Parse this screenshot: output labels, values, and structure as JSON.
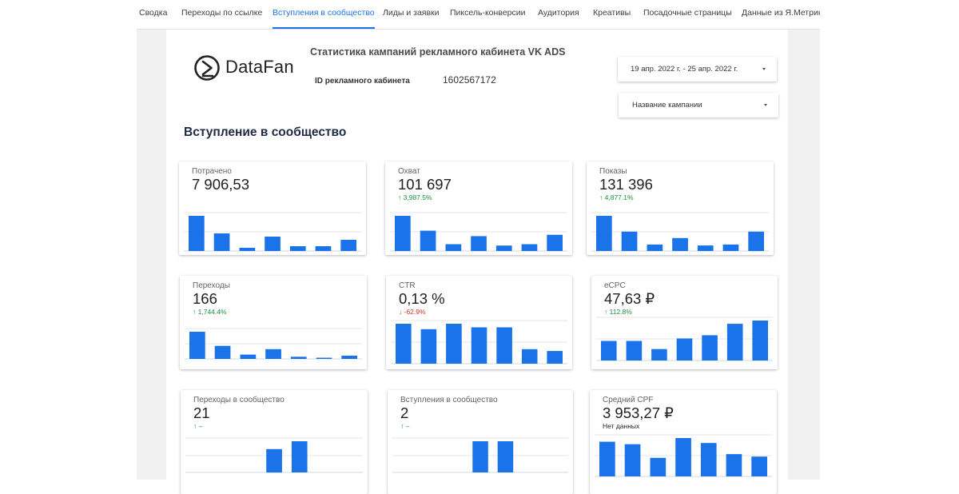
{
  "nav": {
    "tabs": [
      {
        "label": "Сводка",
        "active": false
      },
      {
        "label": "Переходы по ссылке",
        "active": false
      },
      {
        "label": "Вступления в сообщество",
        "active": true
      },
      {
        "label": "Лиды и заявки",
        "active": false
      },
      {
        "label": "Пиксель-конверсии",
        "active": false
      },
      {
        "label": "Аудитория",
        "active": false
      },
      {
        "label": "Креативы",
        "active": false
      },
      {
        "label": "Посадочные страницы",
        "active": false
      },
      {
        "label": "Данные из Я.Метрики",
        "active": false
      }
    ]
  },
  "header": {
    "logo_text": "DataFan",
    "report_title": "Статистика кампаний рекламного кабинета VK ADS",
    "account_label": "ID рекламного кабинета",
    "account_id": "1602567172"
  },
  "controls": {
    "date_range": "19 апр. 2022 г. - 25 апр. 2022 г.",
    "campaign_filter": "Название кампании"
  },
  "section_title": "Вступление в сообщество",
  "colors": {
    "accent": "#1a73e8",
    "bar": "#1a73e8",
    "up": "#1e8e3e",
    "down": "#d93025"
  },
  "cards": [
    {
      "title": "Потрачено",
      "value": "7 906,53",
      "delta": "",
      "trend": "",
      "bars": [
        22,
        11,
        2,
        9,
        3,
        3,
        7
      ]
    },
    {
      "title": "Охват",
      "value": "101 697",
      "delta": "3,987.5%",
      "trend": "up",
      "bars": [
        26,
        15,
        5,
        11,
        4,
        5,
        12
      ]
    },
    {
      "title": "Показы",
      "value": "131 396",
      "delta": "4,877.1%",
      "trend": "up",
      "bars": [
        38,
        21,
        7,
        14,
        6,
        7,
        21
      ]
    },
    {
      "title": "Переходы",
      "value": "166",
      "delta": "1,744.4%",
      "trend": "up",
      "bars": [
        25,
        12,
        4,
        9,
        2,
        1,
        3
      ]
    },
    {
      "title": "CTR",
      "value": "0,13 %",
      "delta": "-62.9%",
      "trend": "down",
      "bars": [
        0.22,
        0.19,
        0.22,
        0.2,
        0.2,
        0.08,
        0.07
      ]
    },
    {
      "title": "eCPC",
      "value": "47,63 ₽",
      "delta": "112.8%",
      "trend": "up",
      "bars": [
        24,
        24,
        14,
        27,
        31,
        45,
        49
      ]
    },
    {
      "title": "Переходы в сообщество",
      "value": "21",
      "delta": "–",
      "trend": "up",
      "bars": [
        0,
        0,
        0,
        9,
        12,
        0,
        0
      ]
    },
    {
      "title": "Вступления в сообщество",
      "value": "2",
      "delta": "–",
      "trend": "up",
      "bars": [
        0,
        0,
        0,
        1,
        1,
        0,
        0
      ]
    },
    {
      "title": "Средний CPF",
      "value": "3 953,27 ₽",
      "delta": "Нет данных",
      "trend": "",
      "bars": [
        2.8,
        2.6,
        1.5,
        3.1,
        2.7,
        1.8,
        1.6
      ]
    }
  ]
}
